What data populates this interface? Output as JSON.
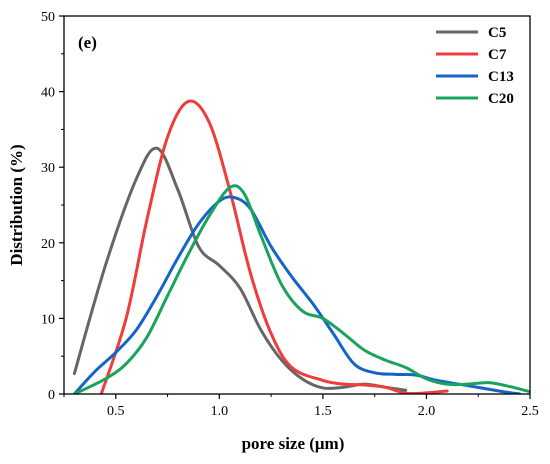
{
  "chart_data": {
    "type": "line",
    "panel_label": "(e)",
    "xlabel": "pore size (μm)",
    "ylabel": "Distribution (%)",
    "xlim": [
      0.25,
      2.5
    ],
    "ylim": [
      0,
      50
    ],
    "xticks": [
      "0.5",
      "1.0",
      "1.5",
      "2.0",
      "2.5"
    ],
    "yticks": [
      "0",
      "10",
      "20",
      "30",
      "40",
      "50"
    ],
    "legend_position": "top-right",
    "series": [
      {
        "name": "C5",
        "color": "#666666",
        "points": [
          [
            0.3,
            2.7
          ],
          [
            0.45,
            17
          ],
          [
            0.6,
            28.5
          ],
          [
            0.7,
            32.5
          ],
          [
            0.8,
            27
          ],
          [
            0.9,
            19.5
          ],
          [
            1.0,
            17
          ],
          [
            1.1,
            14
          ],
          [
            1.2,
            8.5
          ],
          [
            1.3,
            4.5
          ],
          [
            1.4,
            2
          ],
          [
            1.5,
            0.8
          ],
          [
            1.6,
            0.9
          ],
          [
            1.7,
            1.3
          ],
          [
            1.8,
            0.9
          ],
          [
            1.9,
            0.5
          ]
        ]
      },
      {
        "name": "C7",
        "color": "#f03c3c",
        "points": [
          [
            0.43,
            0
          ],
          [
            0.55,
            10
          ],
          [
            0.65,
            23
          ],
          [
            0.75,
            34
          ],
          [
            0.85,
            38.7
          ],
          [
            0.95,
            36
          ],
          [
            1.05,
            27
          ],
          [
            1.15,
            16
          ],
          [
            1.25,
            8
          ],
          [
            1.35,
            3.5
          ],
          [
            1.5,
            1.8
          ],
          [
            1.6,
            1.3
          ],
          [
            1.7,
            1.2
          ],
          [
            1.8,
            0.9
          ],
          [
            1.9,
            0.1
          ],
          [
            2.0,
            0.15
          ],
          [
            2.1,
            0.4
          ]
        ]
      },
      {
        "name": "C13",
        "color": "#1565c8",
        "points": [
          [
            0.3,
            0
          ],
          [
            0.4,
            3
          ],
          [
            0.5,
            5.5
          ],
          [
            0.6,
            8.5
          ],
          [
            0.7,
            13
          ],
          [
            0.8,
            18
          ],
          [
            0.9,
            22.5
          ],
          [
            1.0,
            25.5
          ],
          [
            1.07,
            26
          ],
          [
            1.15,
            24.5
          ],
          [
            1.25,
            19.5
          ],
          [
            1.35,
            15.5
          ],
          [
            1.45,
            12
          ],
          [
            1.55,
            8
          ],
          [
            1.65,
            4
          ],
          [
            1.75,
            2.8
          ],
          [
            1.85,
            2.6
          ],
          [
            1.95,
            2.5
          ],
          [
            2.05,
            1.8
          ],
          [
            2.2,
            1.1
          ],
          [
            2.35,
            0.4
          ],
          [
            2.45,
            0
          ]
        ]
      },
      {
        "name": "C20",
        "color": "#1ba35c",
        "points": [
          [
            0.3,
            0
          ],
          [
            0.45,
            2
          ],
          [
            0.55,
            4
          ],
          [
            0.65,
            7.5
          ],
          [
            0.75,
            13
          ],
          [
            0.85,
            18.5
          ],
          [
            0.95,
            23.5
          ],
          [
            1.05,
            27.3
          ],
          [
            1.12,
            26.5
          ],
          [
            1.2,
            21
          ],
          [
            1.3,
            14.5
          ],
          [
            1.4,
            11
          ],
          [
            1.5,
            10
          ],
          [
            1.6,
            8
          ],
          [
            1.7,
            5.8
          ],
          [
            1.8,
            4.5
          ],
          [
            1.9,
            3.5
          ],
          [
            2.0,
            2
          ],
          [
            2.1,
            1.3
          ],
          [
            2.2,
            1.3
          ],
          [
            2.3,
            1.5
          ],
          [
            2.4,
            1
          ],
          [
            2.5,
            0.3
          ]
        ]
      }
    ]
  }
}
